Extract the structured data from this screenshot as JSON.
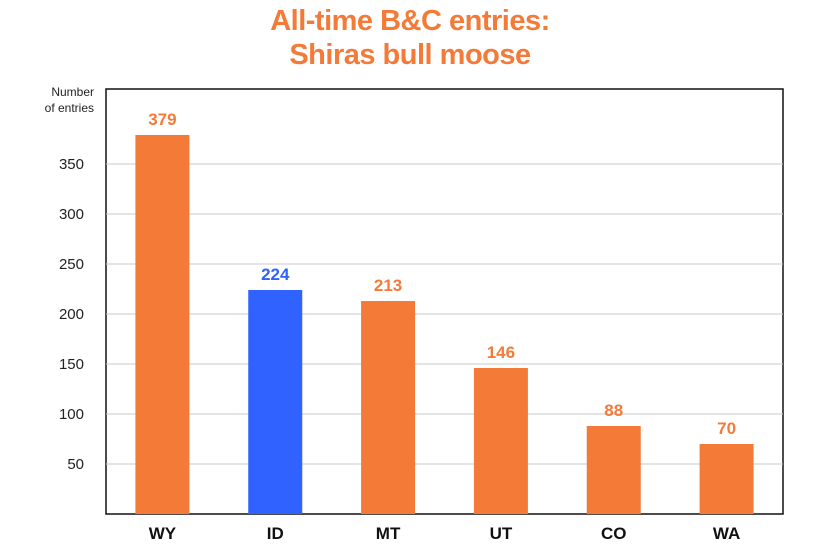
{
  "chart_data": {
    "type": "bar",
    "title_lines": [
      "All-time B&C entries:",
      "Shiras bull moose"
    ],
    "ylabel_lines": [
      "Number",
      "of entries"
    ],
    "categories": [
      "WY",
      "ID",
      "MT",
      "UT",
      "CO",
      "WA"
    ],
    "values": [
      379,
      224,
      213,
      146,
      88,
      70
    ],
    "highlight_category": "ID",
    "yticks": [
      50,
      100,
      150,
      200,
      250,
      300,
      350
    ],
    "ylim": [
      0,
      425
    ],
    "grid": true,
    "colors": {
      "default_bar": "#f47a38",
      "highlight_bar": "#2f62ff",
      "title": "#f47a38",
      "grid": "#c8c8c8"
    }
  }
}
